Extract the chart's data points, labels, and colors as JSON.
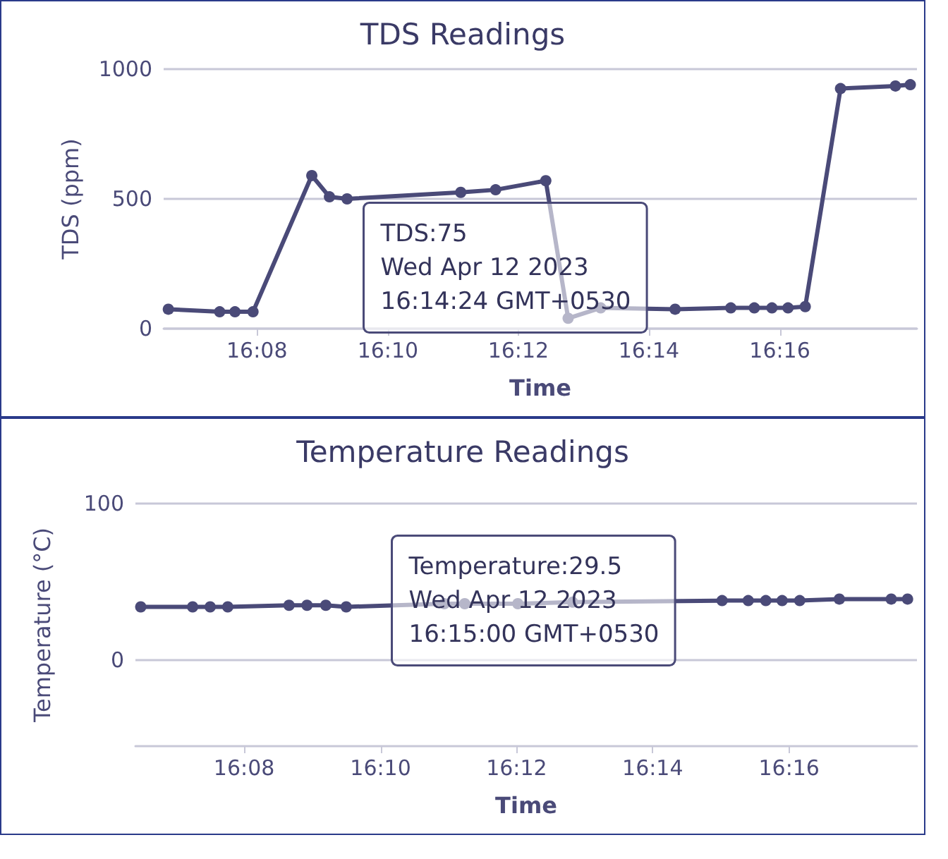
{
  "chart_data": [
    {
      "type": "line",
      "title": "TDS Readings",
      "xlabel": "Time",
      "ylabel": "TDS (ppm)",
      "annotations": [
        "TDS:75\nWed Apr 12 2023\n16:14:24 GMT+0530"
      ],
      "xlim": [
        16.1095,
        16.3017
      ],
      "xticks": [
        {
          "value": 16.1333,
          "label": "16:08"
        },
        {
          "value": 16.1667,
          "label": "16:10"
        },
        {
          "value": 16.2,
          "label": "16:12"
        },
        {
          "value": 16.2333,
          "label": "16:14"
        },
        {
          "value": 16.2667,
          "label": "16:16"
        }
      ],
      "ylim": [
        0,
        1000
      ],
      "yticks": [
        0,
        500,
        1000
      ],
      "grid": "y",
      "marker": "circle",
      "line_style": "solid",
      "series": [
        {
          "color": "#4a4a78",
          "x": [
            16.1107,
            16.1238,
            16.1277,
            16.1323,
            16.1473,
            16.1518,
            16.1563,
            16.1853,
            16.1942,
            16.207,
            16.2127,
            16.221,
            16.24,
            16.2542,
            16.2602,
            16.2647,
            16.2688,
            16.2732,
            16.2822,
            16.2962,
            16.3
          ],
          "values": [
            75,
            65,
            65,
            65,
            590,
            508,
            500,
            525,
            535,
            570,
            40,
            80,
            75,
            80,
            80,
            80,
            80,
            85,
            925,
            935,
            940
          ]
        }
      ]
    },
    {
      "type": "line",
      "title": "Temperature Readings",
      "xlabel": "Time",
      "ylabel": "Temperature (°C)",
      "annotations": [
        "Temperature:29.5\nWed Apr 12 2023\n16:15:00 GMT+0530"
      ],
      "xlim": [
        16.1067,
        16.298
      ],
      "xticks": [
        {
          "value": 16.1333,
          "label": "16:08"
        },
        {
          "value": 16.1667,
          "label": "16:10"
        },
        {
          "value": 16.2,
          "label": "16:12"
        },
        {
          "value": 16.2333,
          "label": "16:14"
        },
        {
          "value": 16.2667,
          "label": "16:16"
        }
      ],
      "ylim": [
        -55,
        100
      ],
      "yticks": [
        0,
        100
      ],
      "grid": "y",
      "marker": "circle",
      "line_style": "solid",
      "series": [
        {
          "color": "#4a4a78",
          "x": [
            16.108,
            16.1207,
            16.125,
            16.1293,
            16.1443,
            16.1487,
            16.1533,
            16.1583,
            16.1823,
            16.1873,
            16.2003,
            16.2137,
            16.2503,
            16.2567,
            16.261,
            16.265,
            16.2693,
            16.279,
            16.2917,
            16.2957
          ],
          "values": [
            34,
            34,
            34,
            34,
            35,
            35,
            35,
            34,
            36,
            36,
            36,
            37,
            38,
            38,
            38,
            38,
            38,
            39,
            39,
            39
          ]
        }
      ]
    }
  ]
}
